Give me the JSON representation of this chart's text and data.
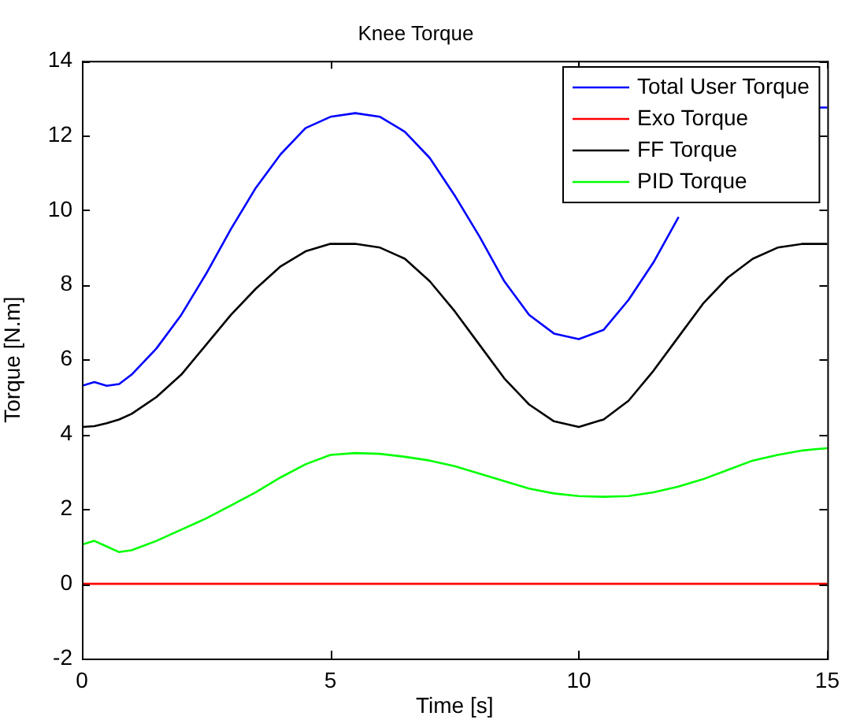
{
  "chart_data": {
    "type": "line",
    "title": "Knee Torque",
    "xlabel": "Time [s]",
    "ylabel": "Torque [N.m]",
    "x": [
      0,
      0.25,
      0.5,
      0.75,
      1,
      1.5,
      2,
      2.5,
      3,
      3.5,
      4,
      4.5,
      5,
      5.5,
      6,
      6.5,
      7,
      7.5,
      8,
      8.5,
      9,
      9.5,
      10,
      10.5,
      11,
      11.5,
      12,
      12.5,
      13,
      13.5,
      14,
      14.5,
      14.8,
      15
    ],
    "series": [
      {
        "name": "Total User Torque",
        "color": "#0000ff",
        "values": [
          5.3,
          5.4,
          5.3,
          5.35,
          5.6,
          6.3,
          7.2,
          8.3,
          9.5,
          10.6,
          11.5,
          12.2,
          12.5,
          12.6,
          12.5,
          12.1,
          11.4,
          10.4,
          9.3,
          8.1,
          7.2,
          6.7,
          6.55,
          6.8,
          7.6,
          8.6,
          9.8,
          null,
          null,
          null,
          null,
          null,
          12.75,
          12.75
        ]
      },
      {
        "name": "Exo Torque",
        "color": "#ff0000",
        "values": [
          0,
          0,
          0,
          0,
          0,
          0,
          0,
          0,
          0,
          0,
          0,
          0,
          0,
          0,
          0,
          0,
          0,
          0,
          0,
          0,
          0,
          0,
          0,
          0,
          0,
          0,
          0,
          0,
          0,
          0,
          0,
          0,
          0,
          0
        ]
      },
      {
        "name": "FF Torque",
        "color": "#000000",
        "values": [
          4.2,
          4.22,
          4.3,
          4.4,
          4.55,
          5.0,
          5.6,
          6.4,
          7.2,
          7.9,
          8.5,
          8.9,
          9.1,
          9.1,
          9.0,
          8.7,
          8.1,
          7.3,
          6.4,
          5.5,
          4.8,
          4.35,
          4.2,
          4.4,
          4.9,
          5.7,
          6.6,
          7.5,
          8.2,
          8.7,
          9.0,
          9.1,
          9.1,
          9.1
        ]
      },
      {
        "name": "PID Torque",
        "color": "#00ff00",
        "values": [
          1.05,
          1.15,
          1.0,
          0.85,
          0.9,
          1.15,
          1.45,
          1.75,
          2.1,
          2.45,
          2.85,
          3.2,
          3.45,
          3.5,
          3.48,
          3.4,
          3.3,
          3.15,
          2.95,
          2.75,
          2.55,
          2.42,
          2.35,
          2.33,
          2.35,
          2.45,
          2.6,
          2.8,
          3.05,
          3.3,
          3.45,
          3.57,
          3.61,
          3.63
        ]
      }
    ],
    "xlim": [
      0,
      15
    ],
    "xticks": [
      0,
      5,
      10,
      15
    ],
    "ylim": [
      -2,
      14
    ],
    "yticks": [
      -2,
      0,
      2,
      4,
      6,
      8,
      10,
      12,
      14
    ],
    "grid": false,
    "legend": "top right",
    "marker": "none",
    "line_style": "solid"
  }
}
